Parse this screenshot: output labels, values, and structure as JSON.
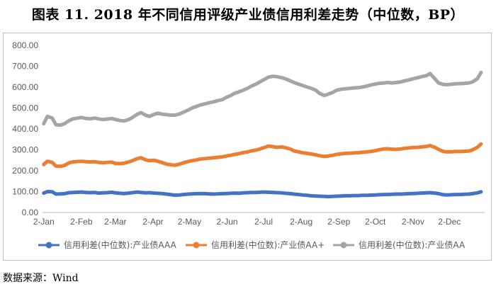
{
  "title": "图表 11. 2018 年不同信用评级产业债信用利差走势（中位数，BP）",
  "source": "数据来源：Wind",
  "colors": {
    "AAA": "#4472c4",
    "AA+": "#ed7d31",
    "AA": "#a5a5a5"
  },
  "chart_data": {
    "type": "line",
    "title": "",
    "xlabel": "",
    "ylabel": "",
    "ylim": [
      0,
      800
    ],
    "yticks": [
      "0.00",
      "100.00",
      "200.00",
      "300.00",
      "400.00",
      "500.00",
      "600.00",
      "700.00",
      "800.00"
    ],
    "xticks": [
      "2-Jan",
      "2-Feb",
      "2-Mar",
      "2-Apr",
      "2-May",
      "2-Jun",
      "2-Jul",
      "2-Aug",
      "2-Sep",
      "2-Oct",
      "2-Nov",
      "2-Dec"
    ],
    "grid": false,
    "legend_position": "bottom",
    "x": [
      "2018-01-02",
      "2018-01-05",
      "2018-01-09",
      "2018-01-12",
      "2018-01-16",
      "2018-01-19",
      "2018-01-23",
      "2018-01-26",
      "2018-01-30",
      "2018-02-02",
      "2018-02-06",
      "2018-02-09",
      "2018-02-13",
      "2018-02-16",
      "2018-02-20",
      "2018-02-23",
      "2018-02-27",
      "2018-03-02",
      "2018-03-06",
      "2018-03-09",
      "2018-03-13",
      "2018-03-16",
      "2018-03-20",
      "2018-03-23",
      "2018-03-27",
      "2018-03-30",
      "2018-04-03",
      "2018-04-06",
      "2018-04-10",
      "2018-04-13",
      "2018-04-17",
      "2018-04-20",
      "2018-04-24",
      "2018-04-27",
      "2018-05-01",
      "2018-05-04",
      "2018-05-08",
      "2018-05-11",
      "2018-05-15",
      "2018-05-18",
      "2018-05-22",
      "2018-05-25",
      "2018-05-29",
      "2018-06-01",
      "2018-06-05",
      "2018-06-08",
      "2018-06-12",
      "2018-06-15",
      "2018-06-19",
      "2018-06-22",
      "2018-06-26",
      "2018-06-29",
      "2018-07-03",
      "2018-07-06",
      "2018-07-10",
      "2018-07-13",
      "2018-07-17",
      "2018-07-20",
      "2018-07-24",
      "2018-07-27",
      "2018-07-31",
      "2018-08-03",
      "2018-08-07",
      "2018-08-10",
      "2018-08-14",
      "2018-08-17",
      "2018-08-21",
      "2018-08-24",
      "2018-08-28",
      "2018-08-31",
      "2018-09-04",
      "2018-09-07",
      "2018-09-11",
      "2018-09-14",
      "2018-09-18",
      "2018-09-21",
      "2018-09-25",
      "2018-09-28",
      "2018-10-02",
      "2018-10-05",
      "2018-10-09",
      "2018-10-12",
      "2018-10-16",
      "2018-10-19",
      "2018-10-23",
      "2018-10-26",
      "2018-10-30",
      "2018-11-02",
      "2018-11-06",
      "2018-11-09",
      "2018-11-13",
      "2018-11-16",
      "2018-11-20",
      "2018-11-23",
      "2018-11-27",
      "2018-11-30",
      "2018-12-04",
      "2018-12-07",
      "2018-12-11",
      "2018-12-14",
      "2018-12-18",
      "2018-12-21",
      "2018-12-25",
      "2018-12-28"
    ],
    "series": [
      {
        "name": "信用利差(中位数):产业债AAA",
        "color_key": "AAA",
        "values": [
          93,
          100,
          99,
          88,
          89,
          90,
          95,
          96,
          97,
          98,
          96,
          95,
          96,
          93,
          94,
          95,
          97,
          94,
          92,
          91,
          93,
          95,
          98,
          96,
          94,
          95,
          93,
          92,
          90,
          88,
          85,
          83,
          84,
          86,
          88,
          89,
          90,
          91,
          90,
          89,
          88,
          89,
          90,
          91,
          92,
          93,
          92,
          94,
          95,
          96,
          96,
          97,
          98,
          97,
          96,
          95,
          94,
          92,
          90,
          88,
          86,
          84,
          82,
          80,
          79,
          78,
          77,
          76,
          77,
          78,
          79,
          80,
          80,
          81,
          81,
          82,
          82,
          83,
          84,
          85,
          86,
          86,
          87,
          88,
          88,
          89,
          90,
          91,
          92,
          93,
          94,
          95,
          93,
          90,
          85,
          84,
          85,
          86,
          86,
          87,
          88,
          90,
          94,
          99
        ]
      },
      {
        "name": "信用利差(中位数):产业债AA+",
        "color_key": "AA+",
        "values": [
          230,
          245,
          240,
          222,
          221,
          225,
          238,
          242,
          244,
          245,
          243,
          242,
          243,
          240,
          238,
          240,
          241,
          235,
          234,
          236,
          242,
          248,
          258,
          262,
          252,
          248,
          250,
          245,
          238,
          232,
          228,
          226,
          232,
          238,
          244,
          248,
          252,
          256,
          258,
          260,
          262,
          264,
          266,
          270,
          274,
          278,
          282,
          286,
          290,
          295,
          299,
          304,
          312,
          318,
          315,
          312,
          314,
          310,
          304,
          295,
          290,
          286,
          283,
          280,
          276,
          272,
          268,
          270,
          274,
          278,
          281,
          283,
          284,
          285,
          286,
          288,
          290,
          292,
          296,
          300,
          304,
          305,
          303,
          302,
          304,
          307,
          309,
          311,
          312,
          314,
          316,
          320,
          312,
          302,
          292,
          290,
          291,
          292,
          292,
          293,
          294,
          300,
          312,
          328
        ]
      },
      {
        "name": "信用利差(中位数):产业债AA",
        "color_key": "AA",
        "values": [
          425,
          460,
          452,
          420,
          418,
          425,
          440,
          448,
          452,
          455,
          450,
          448,
          452,
          448,
          445,
          447,
          450,
          445,
          440,
          438,
          445,
          455,
          470,
          478,
          465,
          460,
          470,
          475,
          470,
          468,
          466,
          466,
          472,
          480,
          490,
          500,
          508,
          515,
          520,
          525,
          530,
          535,
          540,
          550,
          560,
          570,
          578,
          585,
          595,
          605,
          615,
          625,
          638,
          648,
          652,
          650,
          645,
          640,
          630,
          622,
          614,
          608,
          600,
          595,
          585,
          570,
          560,
          566,
          575,
          585,
          590,
          592,
          594,
          596,
          598,
          600,
          605,
          610,
          615,
          618,
          620,
          622,
          620,
          622,
          625,
          630,
          635,
          640,
          645,
          650,
          655,
          665,
          640,
          620,
          613,
          612,
          614,
          616,
          617,
          618,
          620,
          625,
          640,
          670
        ]
      }
    ]
  }
}
